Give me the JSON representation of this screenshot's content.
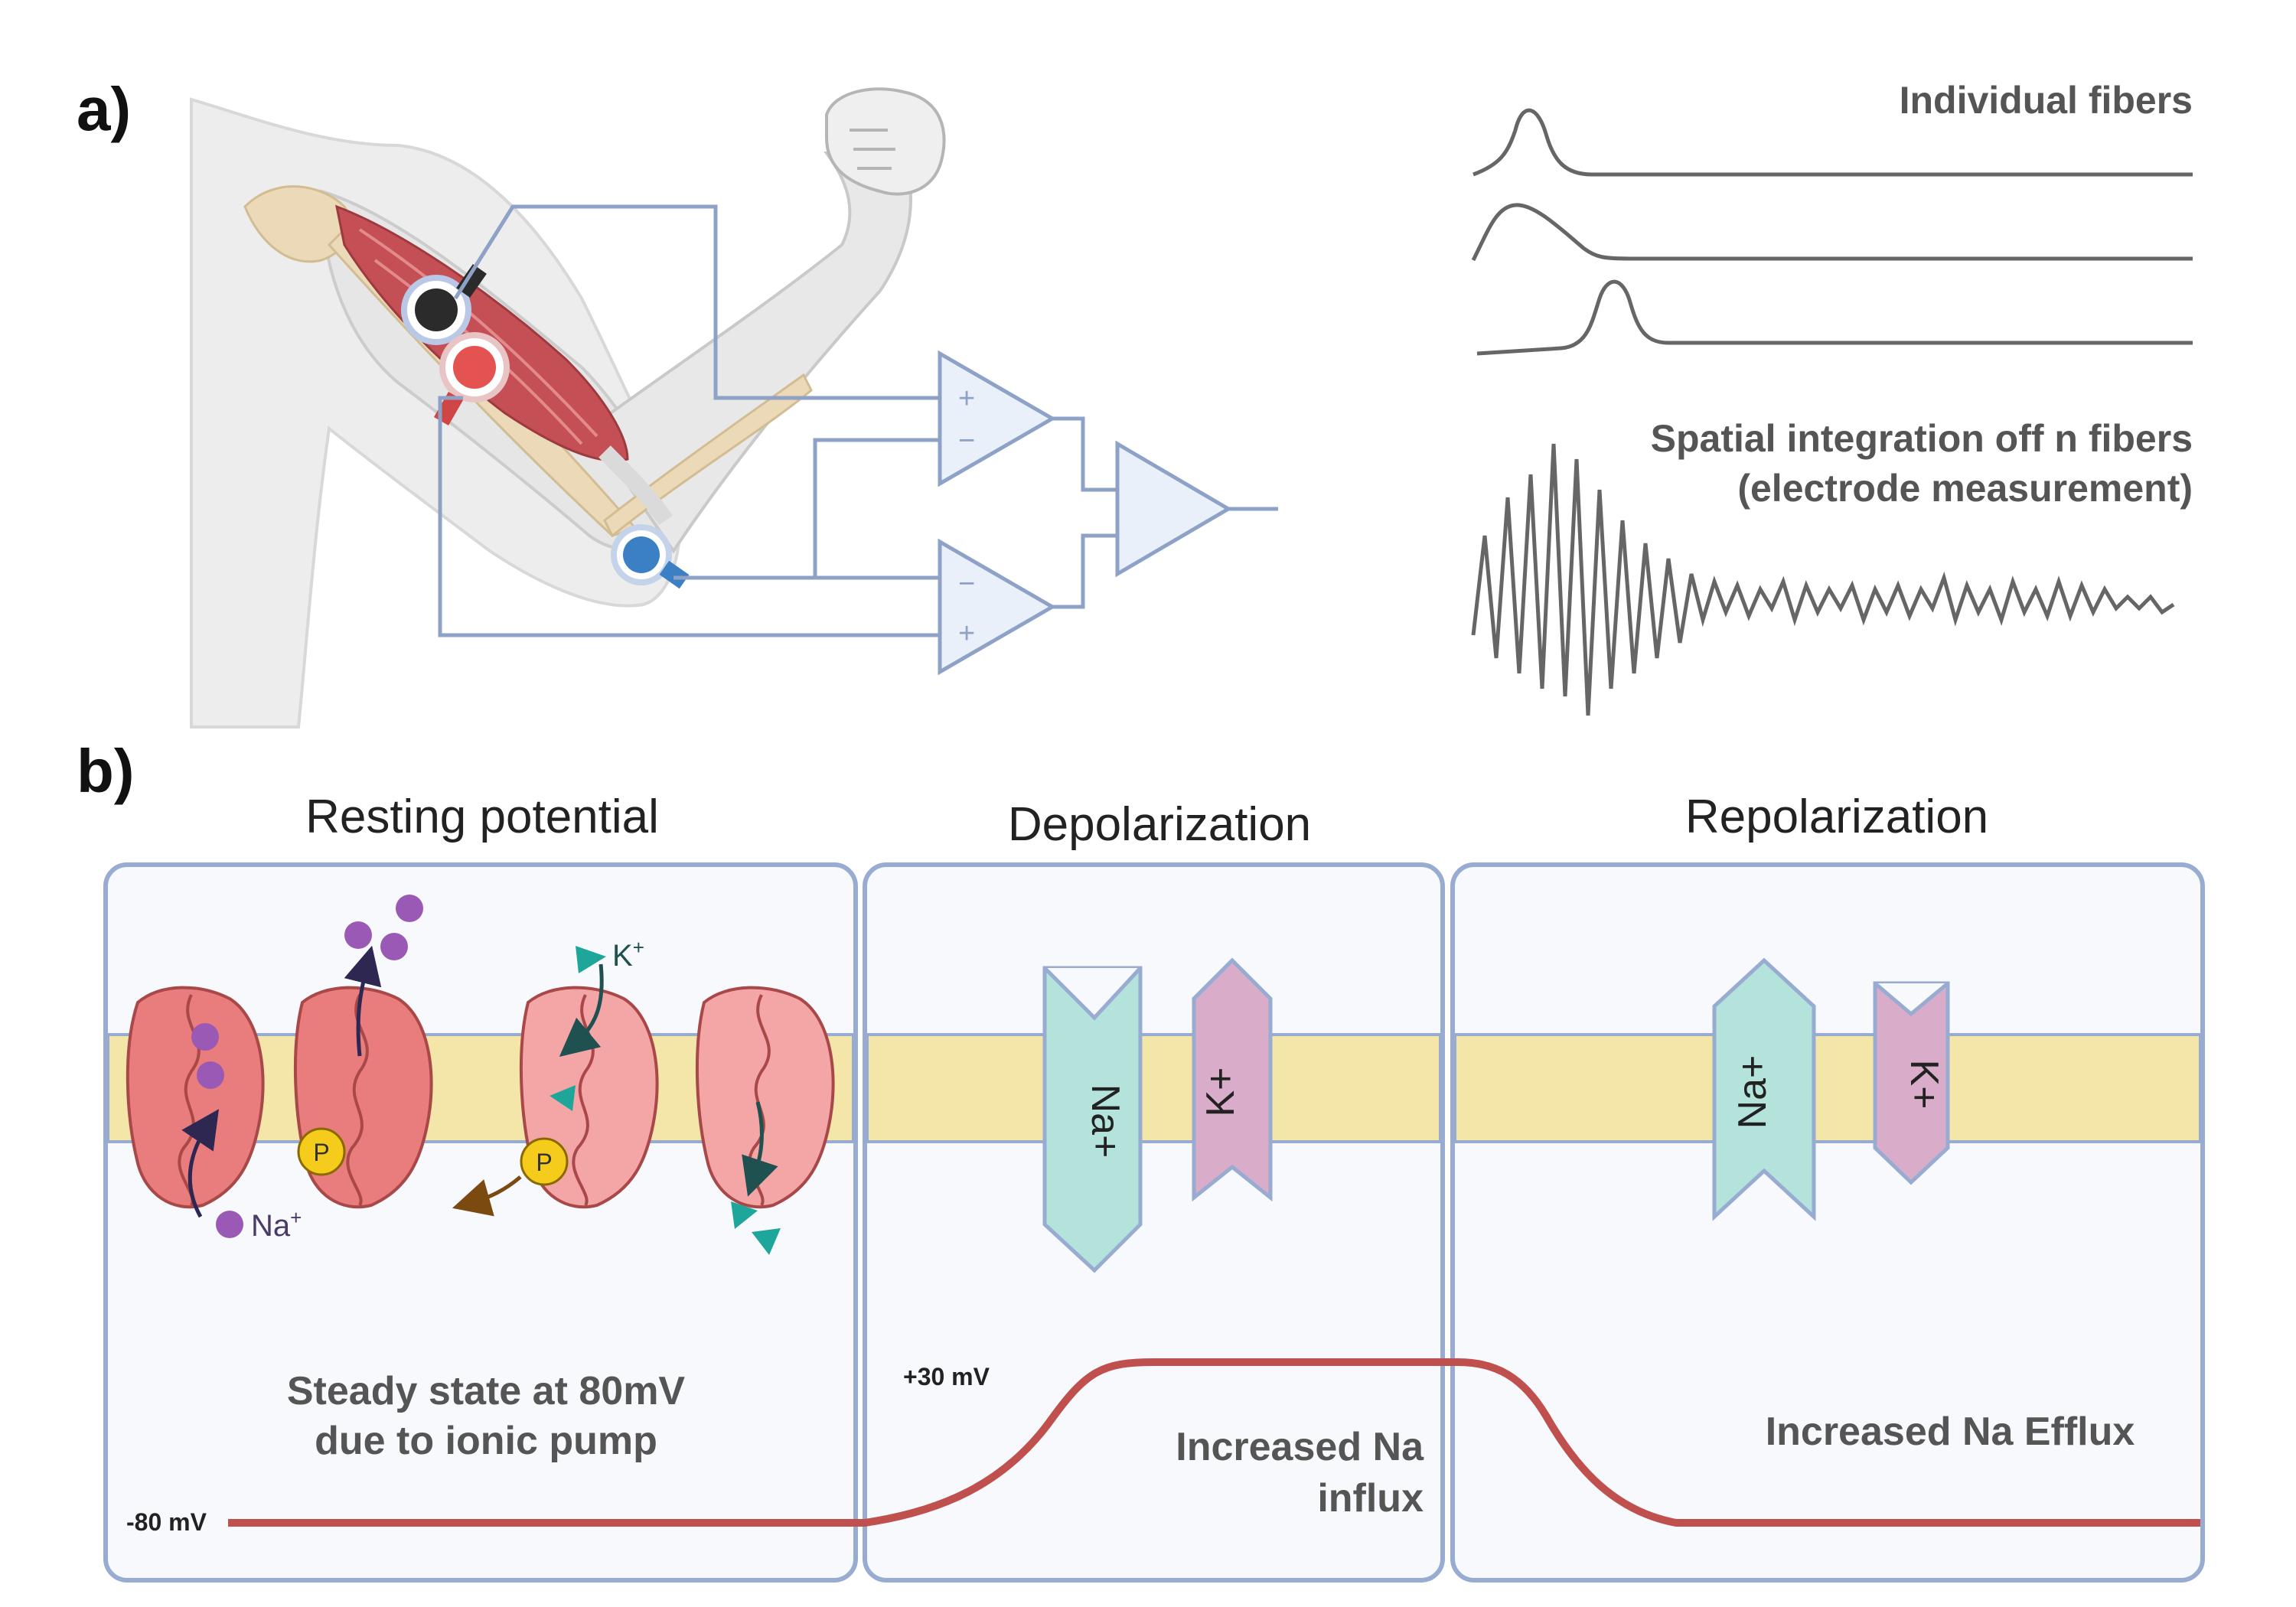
{
  "panel_a": {
    "label": "a)",
    "amp_plus_1": "+",
    "amp_minus_1": "−",
    "amp_minus_2": "−",
    "amp_plus_2": "+",
    "individual_title": "Individual fibers",
    "spatial_title_line1": "Spatial integration off n fibers",
    "spatial_title_line2": "(electrode measurement)"
  },
  "panel_b": {
    "label": "b)",
    "resting": {
      "title": "Resting potential",
      "caption_line1": "Steady state at 80mV",
      "caption_line2": "due to ionic pump",
      "voltage": "-80 mV",
      "na_label": "Na",
      "na_sup": "+",
      "k_label": "K",
      "k_sup": "+",
      "p1": "P",
      "p2": "P"
    },
    "depolarization": {
      "title": "Depolarization",
      "voltage": "+30 mV",
      "caption_line1": "Increased Na",
      "caption_line2": "influx",
      "na_channel": "Na+",
      "k_channel": "K+"
    },
    "repolarization": {
      "title": "Repolarization",
      "caption": "Increased Na Efflux",
      "na_channel": "Na+",
      "k_channel": "K+"
    }
  },
  "colors": {
    "panel_border": "#98acd2",
    "panel_fill": "#f7f9fd",
    "membrane": "#f3e6a8",
    "voltage_trace": "#c0504d",
    "na_channel": "#b4e3db",
    "k_channel": "#d9acc9",
    "pump": "#e97c7c",
    "na_ion": "#9b59b6",
    "k_ion": "#1fa69a",
    "phosphate": "#f5cc1c",
    "amplifier_fill": "#e9f0fa",
    "wire": "#8ea2c8"
  }
}
